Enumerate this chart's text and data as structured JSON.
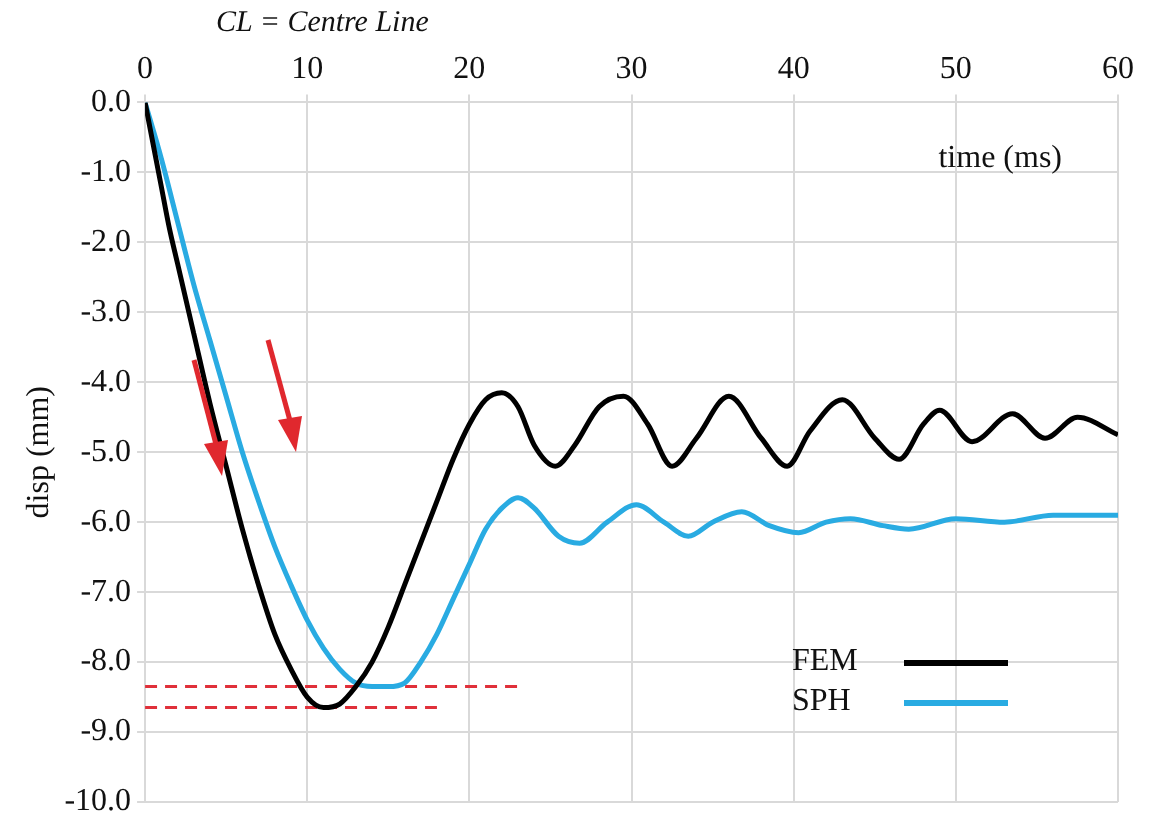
{
  "chart_data": {
    "type": "line",
    "xlabel": "time (ms)",
    "ylabel": "disp (mm)",
    "annotations": [
      "CL = Centre Line"
    ],
    "xlim": [
      0,
      60
    ],
    "xticks": [
      0,
      10,
      20,
      30,
      40,
      50,
      60
    ],
    "ylim": [
      -10,
      0
    ],
    "yticks": [
      {
        "value": 0,
        "label": "0.0"
      },
      {
        "value": -1,
        "label": "-1.0"
      },
      {
        "value": -2,
        "label": "-2.0"
      },
      {
        "value": -3,
        "label": "-3.0"
      },
      {
        "value": -4,
        "label": "-4.0"
      },
      {
        "value": -5,
        "label": "-5.0"
      },
      {
        "value": -6,
        "label": "-6.0"
      },
      {
        "value": -7,
        "label": "-7.0"
      },
      {
        "value": -8,
        "label": "-8.0"
      },
      {
        "value": -9,
        "label": "-9.0"
      },
      {
        "value": -10,
        "label": "-10.0"
      }
    ],
    "grid": true,
    "legend": "bottom right",
    "marker": "none",
    "series": [
      {
        "name": "FEM",
        "color": "#000000",
        "x": [
          0,
          1,
          1.5,
          2,
          3,
          4,
          5,
          6,
          7,
          8,
          9,
          10,
          11,
          12,
          13,
          14,
          15,
          16,
          17,
          18,
          19,
          20,
          21,
          22,
          23,
          24,
          25.3,
          26.5,
          28,
          29.5,
          31,
          32.5,
          34,
          36,
          38,
          39.6,
          41,
          43,
          45,
          46.5,
          48,
          49,
          51,
          53.5,
          55.5,
          57.5,
          60
        ],
        "values": [
          0,
          -1.2,
          -1.8,
          -2.3,
          -3.3,
          -4.3,
          -5.2,
          -6.1,
          -6.9,
          -7.6,
          -8.1,
          -8.5,
          -8.65,
          -8.6,
          -8.35,
          -8.0,
          -7.5,
          -6.9,
          -6.3,
          -5.7,
          -5.1,
          -4.6,
          -4.25,
          -4.15,
          -4.35,
          -4.9,
          -5.2,
          -4.9,
          -4.35,
          -4.2,
          -4.6,
          -5.2,
          -4.8,
          -4.2,
          -4.8,
          -5.2,
          -4.7,
          -4.25,
          -4.8,
          -5.1,
          -4.6,
          -4.4,
          -4.85,
          -4.45,
          -4.8,
          -4.5,
          -4.75
        ]
      },
      {
        "name": "SPH",
        "color": "#29abe2",
        "x": [
          0,
          1,
          2,
          3,
          4,
          5,
          6,
          7,
          8,
          9,
          10,
          11,
          12,
          13,
          14,
          15,
          16,
          17,
          18,
          19,
          20,
          21,
          22,
          23,
          24,
          25.5,
          26.8,
          28.5,
          30.3,
          32,
          33.5,
          35,
          36.8,
          38.5,
          40.3,
          42,
          43.5,
          45.5,
          47.1,
          50,
          53,
          56,
          60
        ],
        "values": [
          0,
          -0.8,
          -1.7,
          -2.6,
          -3.4,
          -4.2,
          -5.0,
          -5.7,
          -6.35,
          -6.9,
          -7.4,
          -7.8,
          -8.1,
          -8.3,
          -8.35,
          -8.35,
          -8.3,
          -8.0,
          -7.6,
          -7.1,
          -6.6,
          -6.1,
          -5.8,
          -5.65,
          -5.8,
          -6.2,
          -6.3,
          -6.0,
          -5.75,
          -6.0,
          -6.2,
          -6.0,
          -5.85,
          -6.05,
          -6.15,
          -6.0,
          -5.95,
          -6.05,
          -6.1,
          -5.95,
          -6.0,
          -5.9,
          -5.9
        ]
      },
      {
        "type": "line",
        "color": "#e0303a",
        "line_style": "dashed",
        "x": [
          0,
          23
        ],
        "values": [
          -8.35,
          -8.35
        ]
      },
      {
        "type": "line",
        "color": "#e0303a",
        "line_style": "dashed",
        "x": [
          0,
          18
        ],
        "values": [
          -8.65,
          -8.65
        ]
      }
    ]
  }
}
